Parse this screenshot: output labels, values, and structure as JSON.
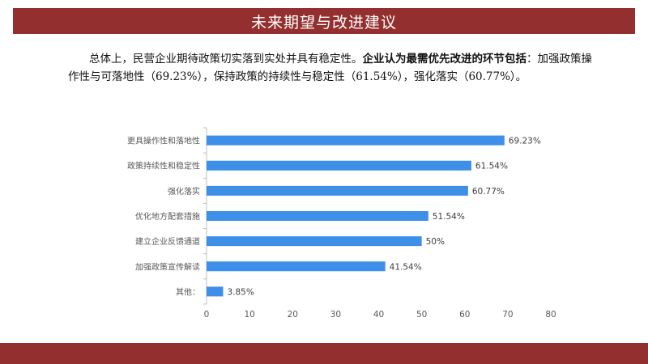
{
  "header": {
    "title": "未来期望与改进建议"
  },
  "paragraph": {
    "part1": "总体上，民营企业期待政策切实落到实处并具有稳定性。",
    "bold": "企业认为最需优先改进的环节包括",
    "part2": "：加强政策操作性与可落地性（69.23%），保持政策的持续性与稳定性（61.54%），强化落实（60.77%）。"
  },
  "colors": {
    "bar": "#3d8fe8",
    "axis": "#bfbfbf",
    "text": "#595959",
    "brand": "#93302f"
  },
  "chart_data": {
    "type": "bar",
    "orientation": "horizontal",
    "categories": [
      "更具操作性和落地性",
      "政策持续性和稳定性",
      "强化落实",
      "优化地方配套措施",
      "建立企业反馈通道",
      "加强政策宣传解读",
      "其他："
    ],
    "values": [
      69.23,
      61.54,
      60.77,
      51.54,
      50,
      41.54,
      3.85
    ],
    "value_labels": [
      "69.23%",
      "61.54%",
      "60.77%",
      "51.54%",
      "50%",
      "41.54%",
      "3.85%"
    ],
    "x_ticks": [
      "0",
      "10",
      "20",
      "30",
      "40",
      "50",
      "60",
      "70",
      "80"
    ],
    "xlim": [
      0,
      80
    ],
    "grid": false,
    "title": "",
    "xlabel": "",
    "ylabel": ""
  }
}
